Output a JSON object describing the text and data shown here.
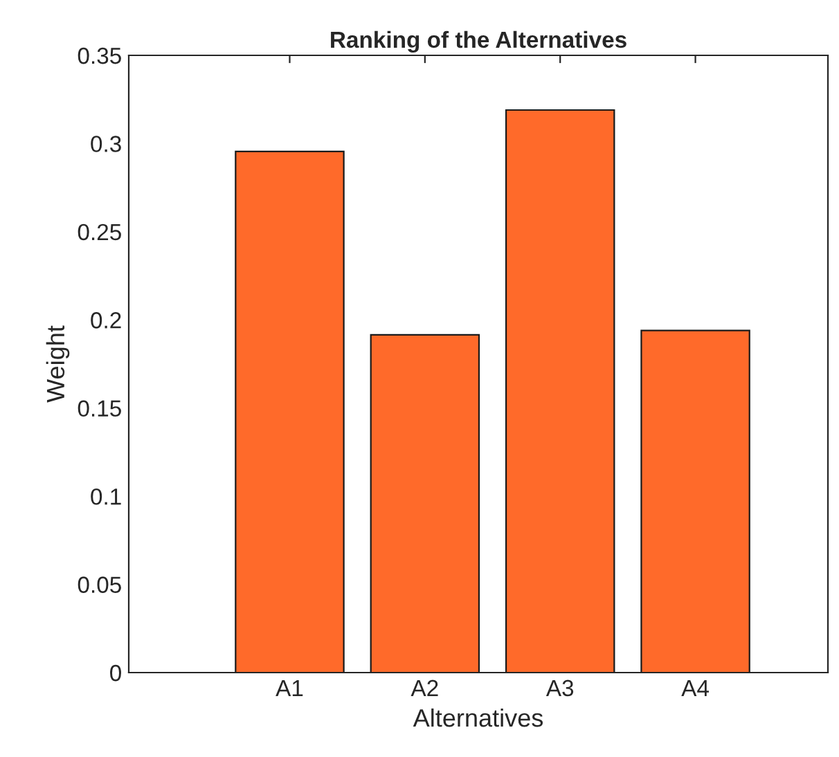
{
  "chart_data": {
    "type": "bar",
    "title": "Ranking of the Alternatives",
    "xlabel": "Alternatives",
    "ylabel": "Weight",
    "categories": [
      "A1",
      "A2",
      "A3",
      "A4"
    ],
    "values": [
      0.2955,
      0.1915,
      0.319,
      0.194
    ],
    "color": "#ff6a2a",
    "ylim": [
      0,
      0.35
    ],
    "yticks": [
      0,
      0.05,
      0.1,
      0.15,
      0.2,
      0.25,
      0.3,
      0.35
    ],
    "grid": false
  }
}
